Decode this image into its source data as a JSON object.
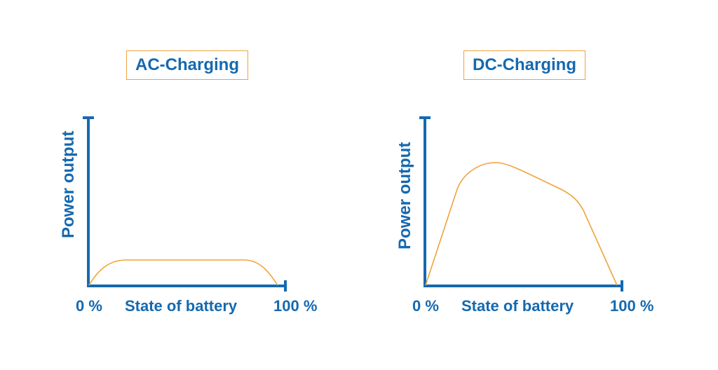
{
  "panels": {
    "ac": {
      "title": "AC-Charging",
      "ylabel": "Power output",
      "x_start": "0 %",
      "xlabel": "State of battery",
      "x_end": "100 %"
    },
    "dc": {
      "title": "DC-Charging",
      "ylabel": "Power output",
      "x_start": "0 %",
      "xlabel": "State of battery",
      "x_end": "100 %"
    }
  },
  "colors": {
    "axis": "#1569b0",
    "curve": "#f0a23c",
    "title_border": "#f0a23c",
    "text": "#1569b0"
  }
}
